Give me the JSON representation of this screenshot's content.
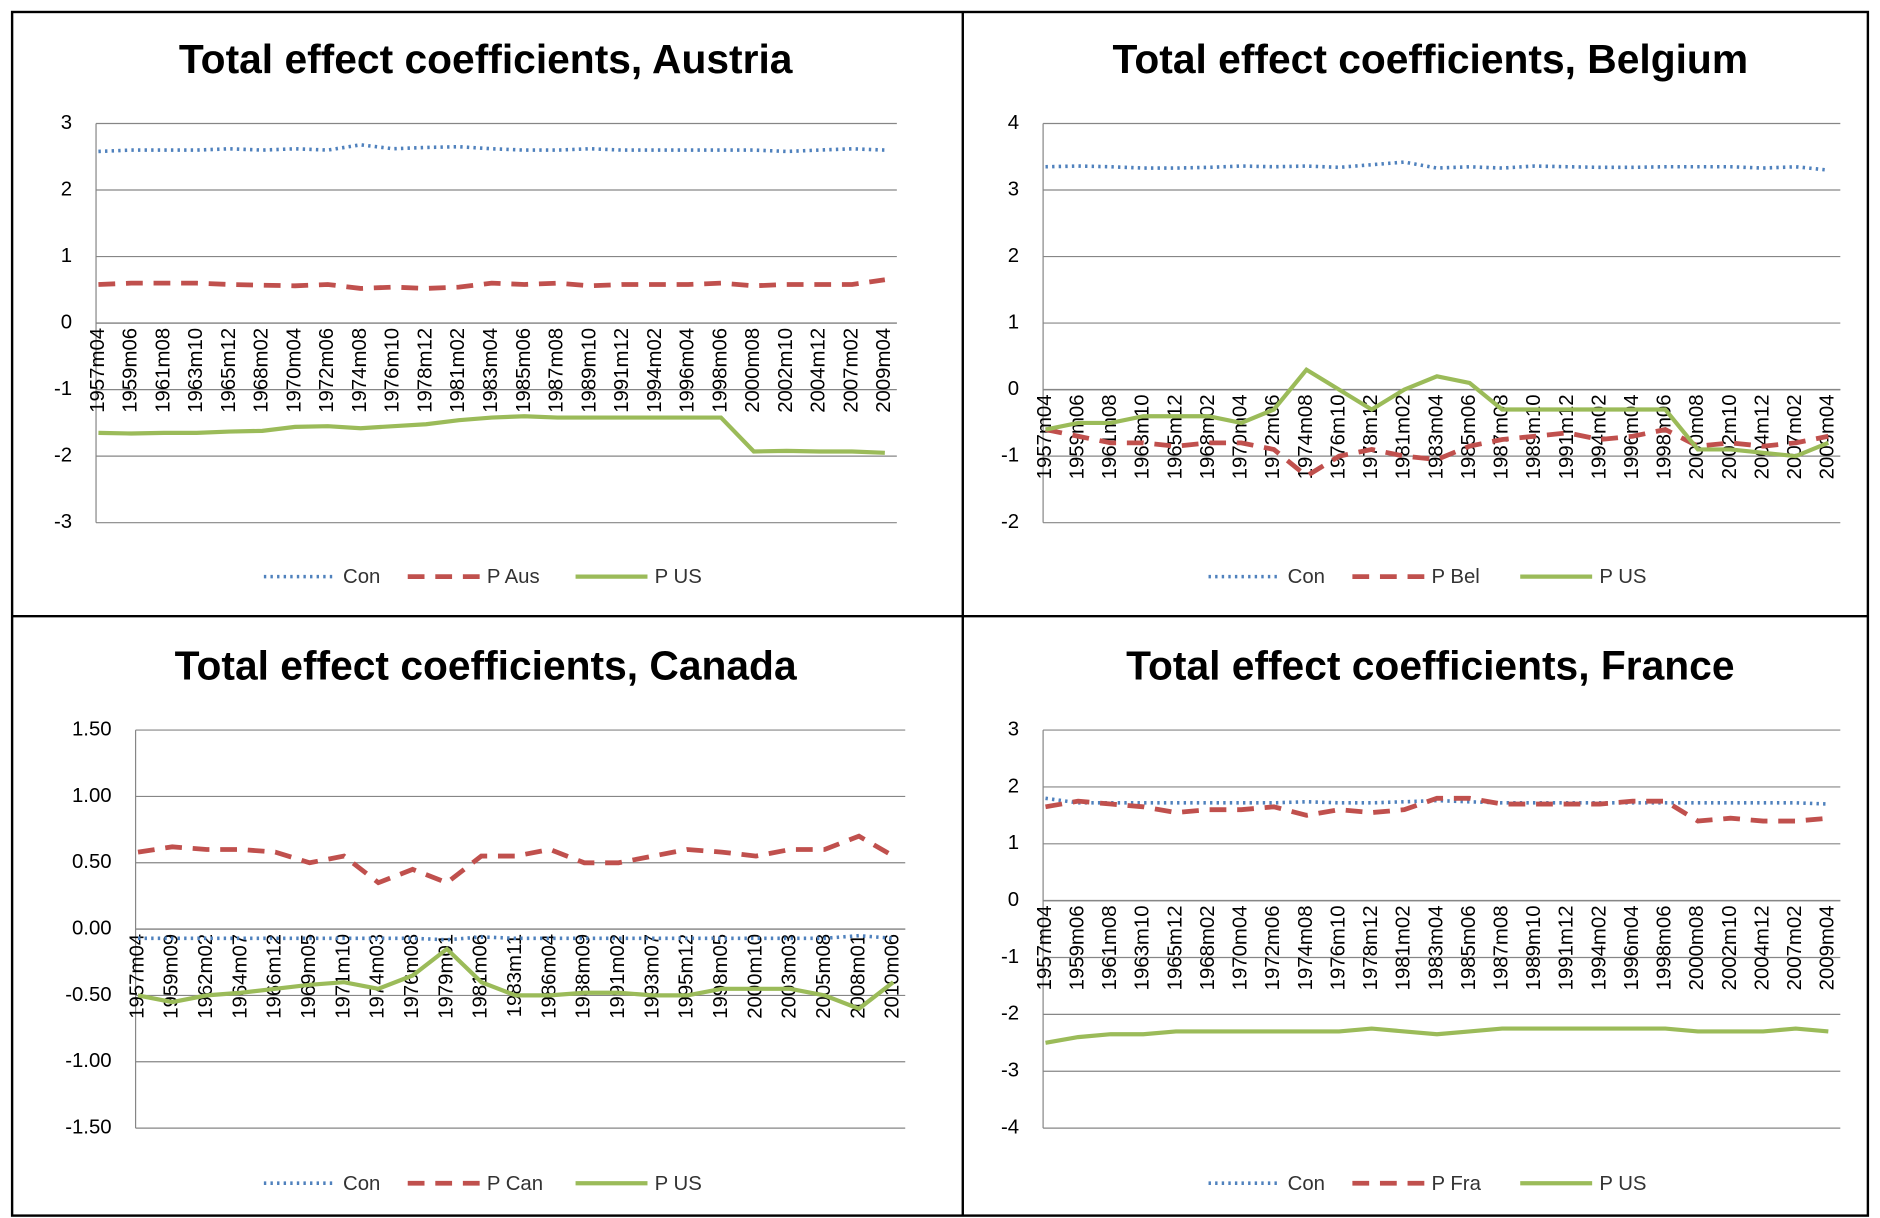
{
  "chart_data": [
    {
      "type": "line",
      "title": "Total effect coefficients, Austria",
      "categories": [
        "1957m04",
        "1959m06",
        "1961m08",
        "1963m10",
        "1965m12",
        "1968m02",
        "1970m04",
        "1972m06",
        "1974m08",
        "1976m10",
        "1978m12",
        "1981m02",
        "1983m04",
        "1985m06",
        "1987m08",
        "1989m10",
        "1991m12",
        "1994m02",
        "1996m04",
        "1998m06",
        "2000m08",
        "2002m10",
        "2004m12",
        "2007m02",
        "2009m04"
      ],
      "ylim": [
        -3,
        3
      ],
      "yticks": [
        -3,
        -2,
        -1,
        0,
        1,
        2,
        3
      ],
      "grid": true,
      "series": [
        {
          "name": "Con",
          "color": "#4f81bd",
          "style": "dotted",
          "values": [
            2.58,
            2.6,
            2.6,
            2.6,
            2.62,
            2.6,
            2.62,
            2.6,
            2.68,
            2.62,
            2.64,
            2.65,
            2.62,
            2.6,
            2.6,
            2.62,
            2.6,
            2.6,
            2.6,
            2.6,
            2.6,
            2.58,
            2.6,
            2.62,
            2.6
          ]
        },
        {
          "name": "P Aus",
          "color": "#c0504d",
          "style": "dashed",
          "values": [
            0.58,
            0.6,
            0.6,
            0.6,
            0.58,
            0.57,
            0.56,
            0.58,
            0.52,
            0.54,
            0.52,
            0.54,
            0.6,
            0.58,
            0.6,
            0.56,
            0.58,
            0.58,
            0.58,
            0.6,
            0.56,
            0.58,
            0.58,
            0.58,
            0.65
          ]
        },
        {
          "name": "P US",
          "color": "#9bbb59",
          "style": "solid",
          "values": [
            -1.65,
            -1.66,
            -1.65,
            -1.65,
            -1.63,
            -1.62,
            -1.56,
            -1.55,
            -1.58,
            -1.55,
            -1.52,
            -1.46,
            -1.42,
            -1.4,
            -1.42,
            -1.42,
            -1.42,
            -1.42,
            -1.42,
            -1.42,
            -1.93,
            -1.92,
            -1.93,
            -1.93,
            -1.95
          ]
        }
      ]
    },
    {
      "type": "line",
      "title": "Total effect coefficients, Belgium",
      "categories": [
        "1957m04",
        "1959m06",
        "1961m08",
        "1963m10",
        "1965m12",
        "1968m02",
        "1970m04",
        "1972m06",
        "1974m08",
        "1976m10",
        "1978m12",
        "1981m02",
        "1983m04",
        "1985m06",
        "1987m08",
        "1989m10",
        "1991m12",
        "1994m02",
        "1996m04",
        "1998m06",
        "2000m08",
        "2002m10",
        "2004m12",
        "2007m02",
        "2009m04"
      ],
      "ylim": [
        -2,
        4
      ],
      "yticks": [
        -2,
        -1,
        0,
        1,
        2,
        3,
        4
      ],
      "grid": true,
      "series": [
        {
          "name": "Con",
          "color": "#4f81bd",
          "style": "dotted",
          "values": [
            3.35,
            3.36,
            3.35,
            3.33,
            3.33,
            3.34,
            3.36,
            3.35,
            3.36,
            3.34,
            3.38,
            3.42,
            3.33,
            3.35,
            3.33,
            3.36,
            3.35,
            3.34,
            3.34,
            3.35,
            3.35,
            3.35,
            3.33,
            3.35,
            3.3
          ]
        },
        {
          "name": "P Bel",
          "color": "#c0504d",
          "style": "dashed",
          "values": [
            -0.6,
            -0.7,
            -0.8,
            -0.8,
            -0.85,
            -0.8,
            -0.8,
            -0.9,
            -1.3,
            -1.0,
            -0.9,
            -1.0,
            -1.05,
            -0.85,
            -0.75,
            -0.7,
            -0.65,
            -0.75,
            -0.7,
            -0.6,
            -0.85,
            -0.8,
            -0.85,
            -0.8,
            -0.7
          ]
        },
        {
          "name": "P US",
          "color": "#9bbb59",
          "style": "solid",
          "values": [
            -0.6,
            -0.5,
            -0.5,
            -0.4,
            -0.4,
            -0.4,
            -0.5,
            -0.3,
            0.3,
            0.0,
            -0.3,
            0.0,
            0.2,
            0.1,
            -0.3,
            -0.3,
            -0.3,
            -0.3,
            -0.3,
            -0.3,
            -0.9,
            -0.9,
            -0.95,
            -1.0,
            -0.8
          ]
        }
      ]
    },
    {
      "type": "line",
      "title": "Total effect coefficients, Canada",
      "categories": [
        "1957m04",
        "1959m09",
        "1962m02",
        "1964m07",
        "1966m12",
        "1969m05",
        "1971m10",
        "1974m03",
        "1976m08",
        "1979m01",
        "1981m06",
        "1983m11",
        "1986m04",
        "1988m09",
        "1991m02",
        "1993m07",
        "1995m12",
        "1998m05",
        "2000m10",
        "2003m03",
        "2005m08",
        "2008m01",
        "2010m06"
      ],
      "ylim": [
        -1.5,
        1.5
      ],
      "yticks": [
        {
          "value": -1.5,
          "label": "-1.50"
        },
        {
          "value": -1,
          "label": "-1.00"
        },
        {
          "value": -0.5,
          "label": "-0.50"
        },
        {
          "value": 0,
          "label": "0.00"
        },
        {
          "value": 0.5,
          "label": "0.50"
        },
        {
          "value": 1,
          "label": "1.00"
        },
        {
          "value": 1.5,
          "label": "1.50"
        }
      ],
      "grid": true,
      "series": [
        {
          "name": "Con",
          "color": "#4f81bd",
          "style": "dotted",
          "values": [
            -0.07,
            -0.07,
            -0.07,
            -0.07,
            -0.07,
            -0.07,
            -0.07,
            -0.07,
            -0.07,
            -0.08,
            -0.06,
            -0.07,
            -0.07,
            -0.07,
            -0.07,
            -0.07,
            -0.07,
            -0.07,
            -0.07,
            -0.07,
            -0.07,
            -0.05,
            -0.07
          ]
        },
        {
          "name": "P Can",
          "color": "#c0504d",
          "style": "dashed",
          "values": [
            0.58,
            0.62,
            0.6,
            0.6,
            0.58,
            0.5,
            0.55,
            0.35,
            0.45,
            0.35,
            0.55,
            0.55,
            0.6,
            0.5,
            0.5,
            0.55,
            0.6,
            0.58,
            0.55,
            0.6,
            0.6,
            0.7,
            0.55
          ]
        },
        {
          "name": "P US",
          "color": "#9bbb59",
          "style": "solid",
          "values": [
            -0.5,
            -0.55,
            -0.5,
            -0.48,
            -0.45,
            -0.42,
            -0.4,
            -0.45,
            -0.35,
            -0.15,
            -0.4,
            -0.5,
            -0.5,
            -0.48,
            -0.48,
            -0.5,
            -0.5,
            -0.45,
            -0.45,
            -0.45,
            -0.5,
            -0.6,
            -0.4
          ]
        }
      ]
    },
    {
      "type": "line",
      "title": "Total effect coefficients, France",
      "categories": [
        "1957m04",
        "1959m06",
        "1961m08",
        "1963m10",
        "1965m12",
        "1968m02",
        "1970m04",
        "1972m06",
        "1974m08",
        "1976m10",
        "1978m12",
        "1981m02",
        "1983m04",
        "1985m06",
        "1987m08",
        "1989m10",
        "1991m12",
        "1994m02",
        "1996m04",
        "1998m06",
        "2000m08",
        "2002m10",
        "2004m12",
        "2007m02",
        "2009m04"
      ],
      "ylim": [
        -4,
        3
      ],
      "yticks": [
        -4,
        -3,
        -2,
        -1,
        0,
        1,
        2,
        3
      ],
      "grid": true,
      "series": [
        {
          "name": "Con",
          "color": "#4f81bd",
          "style": "dotted",
          "values": [
            1.8,
            1.72,
            1.72,
            1.72,
            1.72,
            1.72,
            1.72,
            1.72,
            1.74,
            1.72,
            1.72,
            1.74,
            1.76,
            1.74,
            1.72,
            1.72,
            1.72,
            1.72,
            1.72,
            1.72,
            1.72,
            1.72,
            1.72,
            1.72,
            1.7
          ]
        },
        {
          "name": "P Fra",
          "color": "#c0504d",
          "style": "dashed",
          "values": [
            1.65,
            1.75,
            1.7,
            1.65,
            1.55,
            1.6,
            1.6,
            1.65,
            1.5,
            1.6,
            1.55,
            1.6,
            1.8,
            1.8,
            1.7,
            1.7,
            1.7,
            1.7,
            1.75,
            1.75,
            1.4,
            1.45,
            1.4,
            1.4,
            1.45
          ]
        },
        {
          "name": "P US",
          "color": "#9bbb59",
          "style": "solid",
          "values": [
            -2.5,
            -2.4,
            -2.35,
            -2.35,
            -2.3,
            -2.3,
            -2.3,
            -2.3,
            -2.3,
            -2.3,
            -2.25,
            -2.3,
            -2.35,
            -2.3,
            -2.25,
            -2.25,
            -2.25,
            -2.25,
            -2.25,
            -2.25,
            -2.3,
            -2.3,
            -2.3,
            -2.25,
            -2.3
          ]
        }
      ]
    }
  ]
}
